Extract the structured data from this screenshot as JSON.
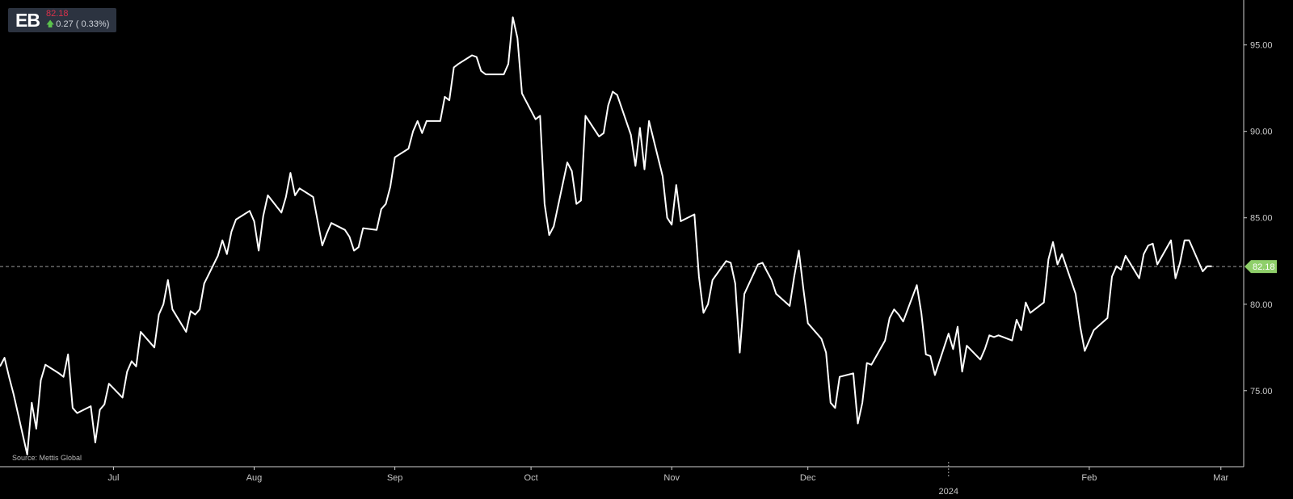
{
  "badge": {
    "ticker": "EB",
    "price": "82.18",
    "change": "0.27",
    "change_pct": "0.33%"
  },
  "source": "Source: Mettis Global",
  "colors": {
    "background": "#000000",
    "line": "#ffffff",
    "up": "#5bc24c",
    "down": "#d9314b",
    "current_marker": "#8fcf6a"
  },
  "chart_data": {
    "type": "line",
    "title": "",
    "xlabel": "",
    "ylabel": "",
    "ylim": [
      70.6,
      97.6
    ],
    "y_ticks": [
      "75.00",
      "80.00",
      "85.00",
      "90.00",
      "95.00"
    ],
    "y_tick_values": [
      75,
      80,
      85,
      90,
      95
    ],
    "x_ticks": [
      "Jul",
      "Aug",
      "Sep",
      "Oct",
      "Nov",
      "Dec",
      "Feb",
      "Mar"
    ],
    "x_tick_dates": [
      "2023-07-01",
      "2023-08-01",
      "2023-09-01",
      "2023-10-01",
      "2023-11-01",
      "2023-12-01",
      "2024-02-01",
      "2024-03-01"
    ],
    "year_marker": {
      "label": "2024",
      "date": "2024-01-01"
    },
    "xlim": [
      "2023-06-06",
      "2024-03-03"
    ],
    "current_value": 82.18,
    "current_label": "82.18",
    "grid": false,
    "series": [
      {
        "points": [
          [
            "2023-06-06",
            76.4
          ],
          [
            "2023-06-07",
            76.9
          ],
          [
            "2023-06-08",
            75.8
          ],
          [
            "2023-06-09",
            74.8
          ],
          [
            "2023-06-12",
            71.3
          ],
          [
            "2023-06-13",
            74.3
          ],
          [
            "2023-06-14",
            72.8
          ],
          [
            "2023-06-15",
            75.6
          ],
          [
            "2023-06-16",
            76.5
          ],
          [
            "2023-06-19",
            76.0
          ],
          [
            "2023-06-20",
            75.8
          ],
          [
            "2023-06-21",
            77.1
          ],
          [
            "2023-06-22",
            74.0
          ],
          [
            "2023-06-23",
            73.7
          ],
          [
            "2023-06-26",
            74.1
          ],
          [
            "2023-06-27",
            72.0
          ],
          [
            "2023-06-28",
            73.9
          ],
          [
            "2023-06-29",
            74.2
          ],
          [
            "2023-06-30",
            75.4
          ],
          [
            "2023-07-03",
            74.6
          ],
          [
            "2023-07-04",
            76.1
          ],
          [
            "2023-07-05",
            76.7
          ],
          [
            "2023-07-06",
            76.4
          ],
          [
            "2023-07-07",
            78.4
          ],
          [
            "2023-07-10",
            77.5
          ],
          [
            "2023-07-11",
            79.4
          ],
          [
            "2023-07-12",
            80.0
          ],
          [
            "2023-07-13",
            81.4
          ],
          [
            "2023-07-14",
            79.7
          ],
          [
            "2023-07-17",
            78.4
          ],
          [
            "2023-07-18",
            79.6
          ],
          [
            "2023-07-19",
            79.4
          ],
          [
            "2023-07-20",
            79.7
          ],
          [
            "2023-07-21",
            81.2
          ],
          [
            "2023-07-24",
            82.8
          ],
          [
            "2023-07-25",
            83.7
          ],
          [
            "2023-07-26",
            82.9
          ],
          [
            "2023-07-27",
            84.2
          ],
          [
            "2023-07-28",
            84.9
          ],
          [
            "2023-07-31",
            85.4
          ],
          [
            "2023-08-01",
            84.8
          ],
          [
            "2023-08-02",
            83.1
          ],
          [
            "2023-08-03",
            85.1
          ],
          [
            "2023-08-04",
            86.3
          ],
          [
            "2023-08-07",
            85.3
          ],
          [
            "2023-08-08",
            86.2
          ],
          [
            "2023-08-09",
            87.6
          ],
          [
            "2023-08-10",
            86.3
          ],
          [
            "2023-08-11",
            86.7
          ],
          [
            "2023-08-14",
            86.2
          ],
          [
            "2023-08-15",
            84.8
          ],
          [
            "2023-08-16",
            83.4
          ],
          [
            "2023-08-17",
            84.1
          ],
          [
            "2023-08-18",
            84.7
          ],
          [
            "2023-08-21",
            84.3
          ],
          [
            "2023-08-22",
            83.9
          ],
          [
            "2023-08-23",
            83.1
          ],
          [
            "2023-08-24",
            83.3
          ],
          [
            "2023-08-25",
            84.4
          ],
          [
            "2023-08-28",
            84.3
          ],
          [
            "2023-08-29",
            85.5
          ],
          [
            "2023-08-30",
            85.8
          ],
          [
            "2023-08-31",
            86.8
          ],
          [
            "2023-09-01",
            88.5
          ],
          [
            "2023-09-04",
            89.0
          ],
          [
            "2023-09-05",
            90.0
          ],
          [
            "2023-09-06",
            90.6
          ],
          [
            "2023-09-07",
            89.9
          ],
          [
            "2023-09-08",
            90.6
          ],
          [
            "2023-09-11",
            90.6
          ],
          [
            "2023-09-12",
            92.0
          ],
          [
            "2023-09-13",
            91.8
          ],
          [
            "2023-09-14",
            93.7
          ],
          [
            "2023-09-15",
            93.9
          ],
          [
            "2023-09-18",
            94.4
          ],
          [
            "2023-09-19",
            94.3
          ],
          [
            "2023-09-20",
            93.5
          ],
          [
            "2023-09-21",
            93.3
          ],
          [
            "2023-09-22",
            93.3
          ],
          [
            "2023-09-25",
            93.3
          ],
          [
            "2023-09-26",
            93.9
          ],
          [
            "2023-09-27",
            96.6
          ],
          [
            "2023-09-28",
            95.4
          ],
          [
            "2023-09-29",
            92.2
          ],
          [
            "2023-10-02",
            90.7
          ],
          [
            "2023-10-03",
            90.9
          ],
          [
            "2023-10-04",
            85.8
          ],
          [
            "2023-10-05",
            84.0
          ],
          [
            "2023-10-06",
            84.5
          ],
          [
            "2023-10-09",
            88.2
          ],
          [
            "2023-10-10",
            87.7
          ],
          [
            "2023-10-11",
            85.8
          ],
          [
            "2023-10-12",
            86.0
          ],
          [
            "2023-10-13",
            90.9
          ],
          [
            "2023-10-16",
            89.7
          ],
          [
            "2023-10-17",
            89.9
          ],
          [
            "2023-10-18",
            91.5
          ],
          [
            "2023-10-19",
            92.3
          ],
          [
            "2023-10-20",
            92.1
          ],
          [
            "2023-10-23",
            89.8
          ],
          [
            "2023-10-24",
            88.0
          ],
          [
            "2023-10-25",
            90.2
          ],
          [
            "2023-10-26",
            87.8
          ],
          [
            "2023-10-27",
            90.6
          ],
          [
            "2023-10-30",
            87.4
          ],
          [
            "2023-10-31",
            85.0
          ],
          [
            "2023-11-01",
            84.6
          ],
          [
            "2023-11-02",
            86.9
          ],
          [
            "2023-11-03",
            84.8
          ],
          [
            "2023-11-06",
            85.2
          ],
          [
            "2023-11-07",
            81.6
          ],
          [
            "2023-11-08",
            79.5
          ],
          [
            "2023-11-09",
            80.0
          ],
          [
            "2023-11-10",
            81.4
          ],
          [
            "2023-11-13",
            82.5
          ],
          [
            "2023-11-14",
            82.4
          ],
          [
            "2023-11-15",
            81.2
          ],
          [
            "2023-11-16",
            77.2
          ],
          [
            "2023-11-17",
            80.6
          ],
          [
            "2023-11-20",
            82.3
          ],
          [
            "2023-11-21",
            82.4
          ],
          [
            "2023-11-22",
            81.9
          ],
          [
            "2023-11-23",
            81.4
          ],
          [
            "2023-11-24",
            80.6
          ],
          [
            "2023-11-27",
            79.9
          ],
          [
            "2023-11-28",
            81.6
          ],
          [
            "2023-11-29",
            83.1
          ],
          [
            "2023-11-30",
            80.9
          ],
          [
            "2023-12-01",
            78.9
          ],
          [
            "2023-12-04",
            78.0
          ],
          [
            "2023-12-05",
            77.2
          ],
          [
            "2023-12-06",
            74.3
          ],
          [
            "2023-12-07",
            74.0
          ],
          [
            "2023-12-08",
            75.8
          ],
          [
            "2023-12-11",
            76.0
          ],
          [
            "2023-12-12",
            73.1
          ],
          [
            "2023-12-13",
            74.3
          ],
          [
            "2023-12-14",
            76.6
          ],
          [
            "2023-12-15",
            76.5
          ],
          [
            "2023-12-18",
            77.9
          ],
          [
            "2023-12-19",
            79.2
          ],
          [
            "2023-12-20",
            79.7
          ],
          [
            "2023-12-21",
            79.4
          ],
          [
            "2023-12-22",
            79.0
          ],
          [
            "2023-12-25",
            81.1
          ],
          [
            "2023-12-26",
            79.5
          ],
          [
            "2023-12-27",
            77.1
          ],
          [
            "2023-12-28",
            77.0
          ],
          [
            "2023-12-29",
            75.9
          ],
          [
            "2024-01-01",
            78.3
          ],
          [
            "2024-01-02",
            77.4
          ],
          [
            "2024-01-03",
            78.7
          ],
          [
            "2024-01-04",
            76.1
          ],
          [
            "2024-01-05",
            77.6
          ],
          [
            "2024-01-08",
            76.8
          ],
          [
            "2024-01-09",
            77.4
          ],
          [
            "2024-01-10",
            78.2
          ],
          [
            "2024-01-11",
            78.1
          ],
          [
            "2024-01-12",
            78.2
          ],
          [
            "2024-01-15",
            77.9
          ],
          [
            "2024-01-16",
            79.1
          ],
          [
            "2024-01-17",
            78.5
          ],
          [
            "2024-01-18",
            80.1
          ],
          [
            "2024-01-19",
            79.5
          ],
          [
            "2024-01-22",
            80.1
          ],
          [
            "2024-01-23",
            82.6
          ],
          [
            "2024-01-24",
            83.6
          ],
          [
            "2024-01-25",
            82.3
          ],
          [
            "2024-01-26",
            82.9
          ],
          [
            "2024-01-29",
            80.6
          ],
          [
            "2024-01-30",
            78.7
          ],
          [
            "2024-01-31",
            77.3
          ],
          [
            "2024-02-01",
            77.9
          ],
          [
            "2024-02-02",
            78.5
          ],
          [
            "2024-02-05",
            79.2
          ],
          [
            "2024-02-06",
            81.6
          ],
          [
            "2024-02-07",
            82.2
          ],
          [
            "2024-02-08",
            82.0
          ],
          [
            "2024-02-09",
            82.8
          ],
          [
            "2024-02-12",
            81.5
          ],
          [
            "2024-02-13",
            82.9
          ],
          [
            "2024-02-14",
            83.4
          ],
          [
            "2024-02-15",
            83.5
          ],
          [
            "2024-02-16",
            82.3
          ],
          [
            "2024-02-19",
            83.7
          ],
          [
            "2024-02-20",
            81.5
          ],
          [
            "2024-02-21",
            82.4
          ],
          [
            "2024-02-22",
            83.7
          ],
          [
            "2024-02-23",
            83.7
          ],
          [
            "2024-02-26",
            81.9
          ],
          [
            "2024-02-27",
            82.2
          ],
          [
            "2024-02-28",
            82.2
          ]
        ]
      }
    ]
  }
}
